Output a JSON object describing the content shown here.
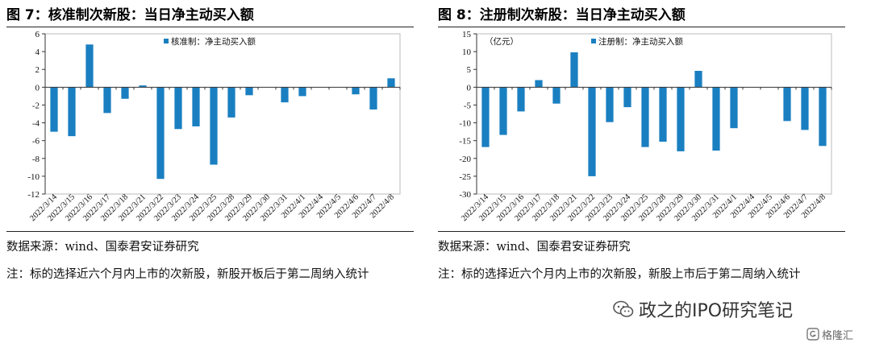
{
  "figures": [
    {
      "title": "图 7：核准制次新股：当日净主动买入额",
      "source": "数据来源：wind、国泰君安证券研究",
      "note": "注：标的选择近六个月内上市的次新股，新股开板后于第二周纳入统计",
      "bar_color": "#1a7fc1"
    },
    {
      "title": "图 8：注册制次新股：当日净主动买入额",
      "source": "数据来源：wind、国泰君安证券研究",
      "note": "注：标的选择近六个月内上市的次新股，新股上市后于第二周纳入统计",
      "bar_color": "#1a7fc1"
    }
  ],
  "chart_data": [
    {
      "type": "bar",
      "title": "",
      "xlabel": "",
      "ylabel": "",
      "unit": "",
      "ylim": [
        -12,
        6
      ],
      "yticks": [
        6,
        4,
        2,
        0,
        -2,
        -4,
        -6,
        -8,
        -10,
        -12
      ],
      "legend": "top-center",
      "grid": false,
      "categories": [
        "2022/3/14",
        "2022/3/15",
        "2022/3/16",
        "2022/3/17",
        "2022/3/18",
        "2022/3/21",
        "2022/3/22",
        "2022/3/23",
        "2022/3/24",
        "2022/3/25",
        "2022/3/28",
        "2022/3/29",
        "2022/3/30",
        "2022/3/31",
        "2022/4/1",
        "2022/4/4",
        "2022/4/5",
        "2022/4/6",
        "2022/4/7",
        "2022/4/8"
      ],
      "series": [
        {
          "name": "核准制：净主动买入额",
          "values": [
            -5.0,
            -5.5,
            4.8,
            -2.9,
            -1.3,
            0.2,
            -10.3,
            -4.7,
            -4.4,
            -8.7,
            -3.4,
            -0.9,
            0.0,
            -1.7,
            -1.0,
            0.0,
            0.0,
            -0.8,
            -2.5,
            1.0
          ]
        }
      ]
    },
    {
      "type": "bar",
      "title": "",
      "xlabel": "",
      "ylabel": "",
      "unit": "（亿元）",
      "ylim": [
        -30,
        15
      ],
      "yticks": [
        15,
        10,
        5,
        0,
        -5,
        -10,
        -15,
        -20,
        -25,
        -30
      ],
      "legend": "top-center",
      "grid": false,
      "categories": [
        "2022/3/14",
        "2022/3/15",
        "2022/3/16",
        "2022/3/17",
        "2022/3/18",
        "2022/3/21",
        "2022/3/22",
        "2022/3/23",
        "2022/3/24",
        "2022/3/25",
        "2022/3/28",
        "2022/3/29",
        "2022/3/30",
        "2022/3/31",
        "2022/4/1",
        "2022/4/4",
        "2022/4/5",
        "2022/4/6",
        "2022/4/7",
        "2022/4/8"
      ],
      "series": [
        {
          "name": "注册制：净主动买入额",
          "values": [
            -16.8,
            -13.4,
            -6.8,
            2.0,
            -4.6,
            9.8,
            -25.0,
            -9.8,
            -5.6,
            -16.8,
            -15.3,
            -18.0,
            4.6,
            -17.8,
            -11.5,
            0.0,
            0.0,
            -9.5,
            -12.0,
            -16.5
          ]
        }
      ]
    }
  ],
  "watermark": {
    "text": "政之的IPO研究笔记",
    "brand": "格隆汇",
    "icon": "wechat-icon"
  }
}
